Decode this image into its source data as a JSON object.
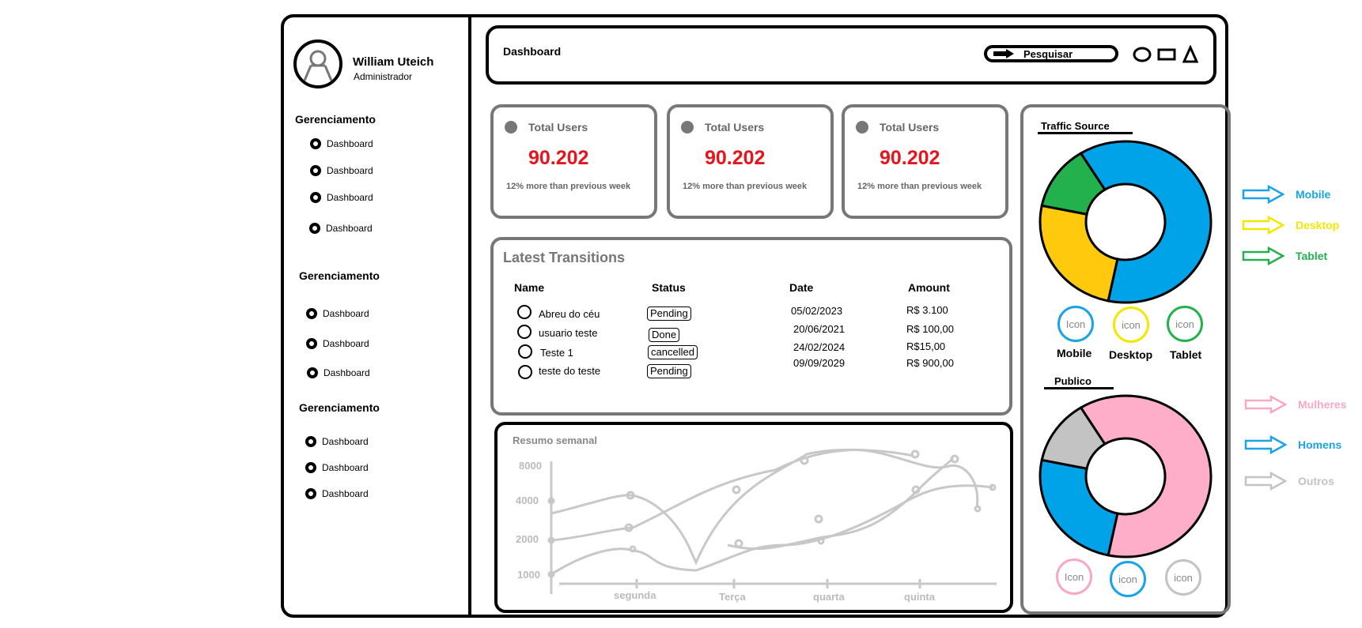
{
  "user": {
    "name": "William Uteich",
    "role": "Administrador"
  },
  "sidebar": {
    "groups": [
      {
        "title": "Gerenciamento",
        "items": [
          "Dashboard",
          "Dashboard",
          "Dashboard",
          "Dashboard"
        ]
      },
      {
        "title": "Gerenciamento",
        "items": [
          "Dashboard",
          "Dashboard",
          "Dashboard"
        ]
      },
      {
        "title": "Gerenciamento",
        "items": [
          "Dashboard",
          "Dashboard",
          "Dashboard"
        ]
      }
    ]
  },
  "header": {
    "title": "Dashboard",
    "search_label": "Pesquisar"
  },
  "cards": [
    {
      "label": "Total Users",
      "value": "90.202",
      "note": "12% more than previous week"
    },
    {
      "label": "Total Users",
      "value": "90.202",
      "note": "12% more than previous week"
    },
    {
      "label": "Total Users",
      "value": "90.202",
      "note": "12% more than previous week"
    }
  ],
  "transactions": {
    "title": "Latest Transitions",
    "columns": [
      "Name",
      "Status",
      "Date",
      "Amount"
    ],
    "rows": [
      {
        "name": "Abreu do céu",
        "status": "Pending",
        "date": "05/02/2023",
        "amount": "R$ 3.100"
      },
      {
        "name": "usuario teste",
        "status": "Done",
        "date": "20/06/2021",
        "amount": "R$ 100,00"
      },
      {
        "name": "Teste 1",
        "status": "cancelled",
        "date": "24/02/2024",
        "amount": "R$15,00"
      },
      {
        "name": "teste do teste",
        "status": "Pending",
        "date": "09/09/2029",
        "amount": "R$ 900,00"
      }
    ]
  },
  "weekly": {
    "title": "Resumo semanal",
    "y_ticks": [
      "8000",
      "4000",
      "2000",
      "1000"
    ],
    "x_ticks": [
      "segunda",
      "Terça",
      "quarta",
      "quinta"
    ]
  },
  "traffic": {
    "title": "Traffic Source",
    "icon_text": "Icon",
    "icon_text_lower": "icon",
    "devices": [
      "Mobile",
      "Desktop",
      "Tablet"
    ]
  },
  "publico": {
    "title": "Publico",
    "icon_text": "Icon",
    "icon_text_lower": "icon"
  },
  "legend": {
    "traffic": [
      {
        "label": "Mobile",
        "color": "#1aa3e8"
      },
      {
        "label": "Desktop",
        "color": "#f5e600"
      },
      {
        "label": "Tablet",
        "color": "#22b14c"
      }
    ],
    "publico": [
      {
        "label": "Mulheres",
        "color": "#f7a8c4"
      },
      {
        "label": "Homens",
        "color": "#1aa3e8"
      },
      {
        "label": "Outros",
        "color": "#c3c3c3"
      }
    ]
  },
  "chart_data": [
    {
      "type": "pie",
      "title": "Traffic Source",
      "categories": [
        "Mobile",
        "Desktop",
        "Tablet"
      ],
      "values": [
        62,
        25,
        13
      ],
      "colors": [
        "#00a2e8",
        "#ffc90e",
        "#22b14c"
      ]
    },
    {
      "type": "pie",
      "title": "Publico",
      "categories": [
        "Mulheres",
        "Homens",
        "Outros"
      ],
      "values": [
        62,
        25,
        13
      ],
      "colors": [
        "#ffaec9",
        "#00a2e8",
        "#c3c3c3"
      ]
    }
  ]
}
